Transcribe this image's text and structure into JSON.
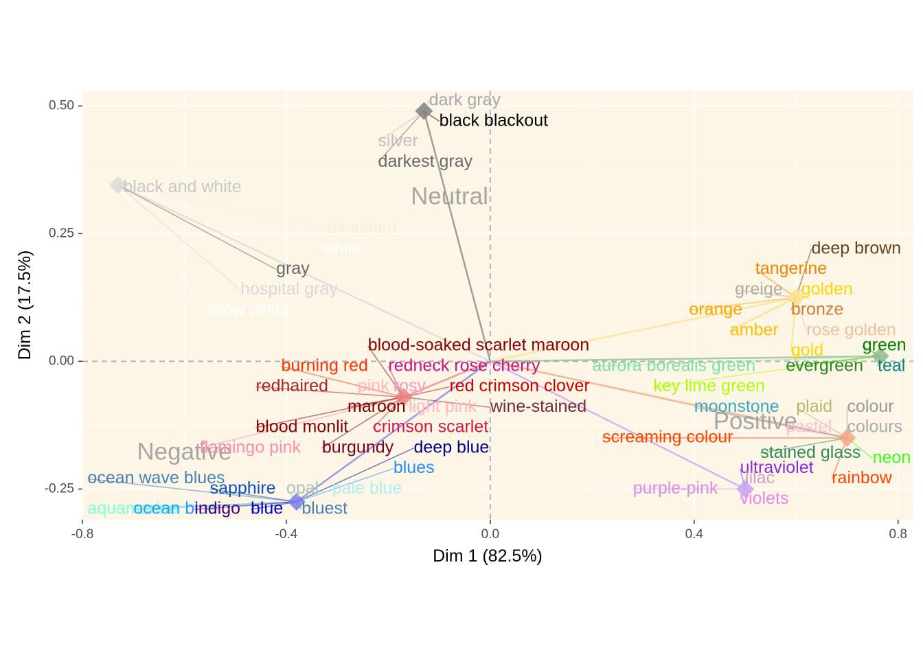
{
  "chart_data": {
    "type": "scatter",
    "title": "",
    "xlabel": "Dim 1 (82.5%)",
    "ylabel": "Dim 2 (17.5%)",
    "xlim": [
      -0.8,
      0.83
    ],
    "ylim": [
      -0.31,
      0.53
    ],
    "x_ticks": [
      -0.8,
      -0.4,
      0.0,
      0.4,
      0.8
    ],
    "x_tick_labels": [
      "-0.8",
      "-0.4",
      "0.0",
      "0.4",
      "0.8"
    ],
    "y_ticks": [
      -0.25,
      0.0,
      0.25,
      0.5
    ],
    "y_tick_labels": [
      "-0.25",
      "0.00",
      "0.25",
      "0.50"
    ],
    "grid": true,
    "legend": "none",
    "panel_color": "#fdf5e6",
    "reference_lines": {
      "x": 0.0,
      "y": 0.0
    },
    "group_labels": [
      {
        "label": "Neutral",
        "x": -0.08,
        "y": 0.32
      },
      {
        "label": "Negative",
        "x": -0.6,
        "y": -0.18
      },
      {
        "label": "Positive",
        "x": 0.52,
        "y": -0.12
      }
    ],
    "centroids": [
      {
        "label": "dark gray",
        "x": -0.13,
        "y": 0.49,
        "color": "#808080"
      },
      {
        "label": "black and white",
        "x": -0.73,
        "y": 0.345,
        "color": "#d9d9d9"
      },
      {
        "label": "redhaired",
        "x": -0.17,
        "y": -0.07,
        "color": "#f08080"
      },
      {
        "label": "sapphire",
        "x": -0.38,
        "y": -0.275,
        "color": "#7b7bea"
      },
      {
        "label": "golden",
        "x": 0.6,
        "y": 0.125,
        "color": "#ffe08a"
      },
      {
        "label": "green",
        "x": 0.765,
        "y": 0.01,
        "color": "#8fbc8f"
      },
      {
        "label": "pastel",
        "x": 0.7,
        "y": -0.15,
        "color": "#f4a27f"
      },
      {
        "label": "lilac",
        "x": 0.5,
        "y": -0.25,
        "color": "#c8a2f0"
      }
    ],
    "points": [
      {
        "label": "dark gray",
        "x": -0.12,
        "y": 0.51,
        "color": "#a9a9a9",
        "ax": -0.13,
        "ay": 0.49
      },
      {
        "label": "black blackout",
        "x": -0.1,
        "y": 0.47,
        "color": "#000000",
        "ax": -0.13,
        "ay": 0.49
      },
      {
        "label": "silver",
        "x": -0.22,
        "y": 0.43,
        "color": "#c0c0c0",
        "ax": -0.13,
        "ay": 0.49
      },
      {
        "label": "darkest gray",
        "x": -0.22,
        "y": 0.39,
        "color": "#696969",
        "ax": -0.13,
        "ay": 0.49
      },
      {
        "label": "black and white",
        "x": -0.72,
        "y": 0.34,
        "color": "#c8c8c8",
        "ax": -0.73,
        "ay": 0.345
      },
      {
        "label": "bleached",
        "x": -0.32,
        "y": 0.26,
        "color": "#f2f2dc",
        "ax": -0.73,
        "ay": 0.345
      },
      {
        "label": "white",
        "x": -0.33,
        "y": 0.22,
        "color": "#ffffff",
        "ax": -0.73,
        "ay": 0.345
      },
      {
        "label": "gray",
        "x": -0.42,
        "y": 0.18,
        "color": "#696969",
        "ax": -0.73,
        "ay": 0.345
      },
      {
        "label": "hospital gray",
        "x": -0.49,
        "y": 0.14,
        "color": "#d9d9d9",
        "ax": -0.73,
        "ay": 0.345
      },
      {
        "label": "snow white",
        "x": -0.56,
        "y": 0.1,
        "color": "#ffffff",
        "ax": -0.73,
        "ay": 0.345
      },
      {
        "label": "blood-soaked scarlet maroon",
        "x": -0.24,
        "y": 0.03,
        "color": "#8b0000",
        "ax": -0.17,
        "ay": -0.07
      },
      {
        "label": "burning red",
        "x": -0.41,
        "y": -0.01,
        "color": "#ff3300",
        "ax": -0.17,
        "ay": -0.07
      },
      {
        "label": "redneck rose cherry",
        "x": -0.2,
        "y": -0.01,
        "color": "#c71585",
        "ax": -0.17,
        "ay": -0.07
      },
      {
        "label": "redhaired",
        "x": -0.46,
        "y": -0.05,
        "color": "#a52a2a",
        "ax": -0.17,
        "ay": -0.07
      },
      {
        "label": "pink",
        "x": -0.26,
        "y": -0.05,
        "color": "#ffb6c1",
        "ax": -0.17,
        "ay": -0.07
      },
      {
        "label": "rosy",
        "x": -0.19,
        "y": -0.05,
        "color": "#f49ac1",
        "ax": -0.17,
        "ay": -0.07
      },
      {
        "label": "red crimson clover",
        "x": -0.08,
        "y": -0.05,
        "color": "#cc0000",
        "ax": -0.17,
        "ay": -0.07
      },
      {
        "label": "maroon",
        "x": -0.28,
        "y": -0.09,
        "color": "#800000",
        "ax": -0.17,
        "ay": -0.07
      },
      {
        "label": "light pink",
        "x": -0.16,
        "y": -0.09,
        "color": "#ffb6c1",
        "ax": -0.17,
        "ay": -0.07
      },
      {
        "label": "wine-stained",
        "x": 0.0,
        "y": -0.09,
        "color": "#722f37",
        "ax": -0.17,
        "ay": -0.07
      },
      {
        "label": "blood monlit",
        "x": -0.46,
        "y": -0.13,
        "color": "#8b0000",
        "ax": -0.17,
        "ay": -0.07
      },
      {
        "label": "crimson scarlet",
        "x": -0.23,
        "y": -0.13,
        "color": "#dc143c",
        "ax": -0.17,
        "ay": -0.07
      },
      {
        "label": "flamingo pink",
        "x": -0.57,
        "y": -0.17,
        "color": "#fc8eac",
        "ax": -0.17,
        "ay": -0.07
      },
      {
        "label": "burgundy",
        "x": -0.33,
        "y": -0.17,
        "color": "#800020",
        "ax": -0.17,
        "ay": -0.07
      },
      {
        "label": "deep blue",
        "x": -0.15,
        "y": -0.17,
        "color": "#00008b",
        "ax": -0.38,
        "ay": -0.275
      },
      {
        "label": "blues",
        "x": -0.19,
        "y": -0.21,
        "color": "#1e90ff",
        "ax": -0.38,
        "ay": -0.275
      },
      {
        "label": "ocean wave blues",
        "x": -0.79,
        "y": -0.23,
        "color": "#4682b4",
        "ax": -0.38,
        "ay": -0.275
      },
      {
        "label": "sapphire",
        "x": -0.55,
        "y": -0.25,
        "color": "#0f52ba",
        "ax": -0.38,
        "ay": -0.275
      },
      {
        "label": "opal",
        "x": -0.4,
        "y": -0.25,
        "color": "#a8c3bc",
        "ax": -0.38,
        "ay": -0.275
      },
      {
        "label": "pale blue",
        "x": -0.31,
        "y": -0.25,
        "color": "#afeeee",
        "ax": -0.38,
        "ay": -0.275
      },
      {
        "label": "aquamarine",
        "x": -0.79,
        "y": -0.29,
        "color": "#7fffd4",
        "ax": -0.38,
        "ay": -0.275
      },
      {
        "label": "ocean blue",
        "x": -0.7,
        "y": -0.29,
        "color": "#1ea0ff",
        "ax": -0.38,
        "ay": -0.275
      },
      {
        "label": "indigo",
        "x": -0.58,
        "y": -0.29,
        "color": "#4b0082",
        "ax": -0.38,
        "ay": -0.275
      },
      {
        "label": "blue",
        "x": -0.47,
        "y": -0.29,
        "color": "#0000cd",
        "ax": -0.38,
        "ay": -0.275
      },
      {
        "label": "bluest",
        "x": -0.37,
        "y": -0.29,
        "color": "#4682b4",
        "ax": -0.38,
        "ay": -0.275
      },
      {
        "label": "deep brown",
        "x": 0.63,
        "y": 0.22,
        "color": "#654321",
        "ax": 0.6,
        "ay": 0.125
      },
      {
        "label": "tangerine",
        "x": 0.52,
        "y": 0.18,
        "color": "#f28500",
        "ax": 0.6,
        "ay": 0.125
      },
      {
        "label": "greige",
        "x": 0.48,
        "y": 0.14,
        "color": "#b0aba0",
        "ax": 0.6,
        "ay": 0.125
      },
      {
        "label": "golden",
        "x": 0.61,
        "y": 0.14,
        "color": "#ffd700",
        "ax": 0.6,
        "ay": 0.125
      },
      {
        "label": "orange",
        "x": 0.39,
        "y": 0.1,
        "color": "#ffa500",
        "ax": 0.6,
        "ay": 0.125
      },
      {
        "label": "bronze",
        "x": 0.59,
        "y": 0.1,
        "color": "#cd7f32",
        "ax": 0.6,
        "ay": 0.125
      },
      {
        "label": "amber",
        "x": 0.47,
        "y": 0.06,
        "color": "#ffbf00",
        "ax": 0.6,
        "ay": 0.125
      },
      {
        "label": "rose golden",
        "x": 0.62,
        "y": 0.06,
        "color": "#e8c39e",
        "ax": 0.6,
        "ay": 0.125
      },
      {
        "label": "gold",
        "x": 0.59,
        "y": 0.02,
        "color": "#ffd700",
        "ax": 0.6,
        "ay": 0.125
      },
      {
        "label": "green",
        "x": 0.73,
        "y": 0.03,
        "color": "#008000",
        "ax": 0.765,
        "ay": 0.01
      },
      {
        "label": "aurora borealis green",
        "x": 0.2,
        "y": -0.01,
        "color": "#7fe0a0",
        "ax": 0.765,
        "ay": 0.01
      },
      {
        "label": "evergreen",
        "x": 0.58,
        "y": -0.01,
        "color": "#228b22",
        "ax": 0.765,
        "ay": 0.01
      },
      {
        "label": "teal",
        "x": 0.76,
        "y": -0.01,
        "color": "#008080",
        "ax": 0.765,
        "ay": 0.01
      },
      {
        "label": "key lime green",
        "x": 0.32,
        "y": -0.05,
        "color": "#aaff00",
        "ax": 0.765,
        "ay": 0.01
      },
      {
        "label": "moonstone",
        "x": 0.4,
        "y": -0.09,
        "color": "#3aa8c1",
        "ax": 0.7,
        "ay": -0.15
      },
      {
        "label": "plaid",
        "x": 0.6,
        "y": -0.09,
        "color": "#bdb76b",
        "ax": 0.7,
        "ay": -0.15
      },
      {
        "label": "colour",
        "x": 0.7,
        "y": -0.09,
        "color": "#999999",
        "ax": 0.7,
        "ay": -0.15
      },
      {
        "label": "pastel",
        "x": 0.58,
        "y": -0.13,
        "color": "#ffc0cb",
        "ax": 0.7,
        "ay": -0.15
      },
      {
        "label": "colours",
        "x": 0.7,
        "y": -0.13,
        "color": "#aaaaaa",
        "ax": 0.7,
        "ay": -0.15
      },
      {
        "label": "screaming colour",
        "x": 0.22,
        "y": -0.15,
        "color": "#ff4500",
        "ax": 0.7,
        "ay": -0.15
      },
      {
        "label": "stained glass",
        "x": 0.53,
        "y": -0.18,
        "color": "#2e8b57",
        "ax": 0.7,
        "ay": -0.15
      },
      {
        "label": "neon",
        "x": 0.75,
        "y": -0.19,
        "color": "#39ff14",
        "ax": 0.7,
        "ay": -0.15
      },
      {
        "label": "ultraviolet",
        "x": 0.49,
        "y": -0.21,
        "color": "#8a2be2",
        "ax": 0.5,
        "ay": -0.25
      },
      {
        "label": "rainbow",
        "x": 0.67,
        "y": -0.23,
        "color": "#ff4500",
        "ax": 0.7,
        "ay": -0.15
      },
      {
        "label": "lilac",
        "x": 0.5,
        "y": -0.23,
        "color": "#c8a2c8",
        "ax": 0.5,
        "ay": -0.25
      },
      {
        "label": "purple-pink",
        "x": 0.28,
        "y": -0.25,
        "color": "#da8fe6",
        "ax": 0.5,
        "ay": -0.25
      },
      {
        "label": "violets",
        "x": 0.49,
        "y": -0.27,
        "color": "#ee82ee",
        "ax": 0.5,
        "ay": -0.25
      }
    ]
  }
}
